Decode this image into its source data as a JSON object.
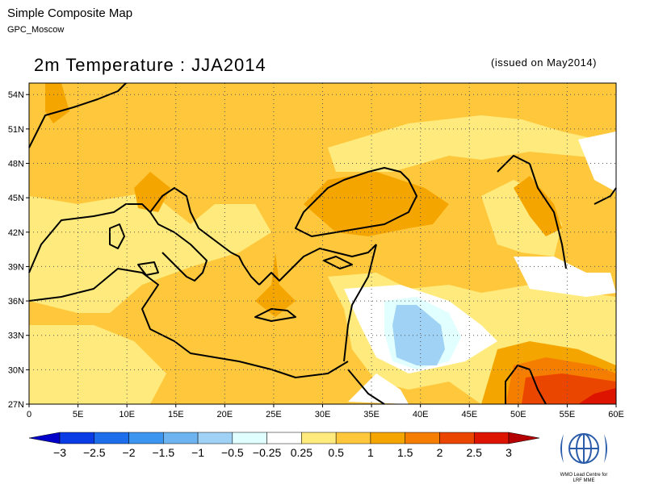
{
  "header": {
    "title": "Simple Composite Map",
    "source": "GPC_Moscow"
  },
  "map": {
    "title": "2m Temperature : JJA2014",
    "issued": "(issued on May2014)",
    "lon_range": [
      0,
      60
    ],
    "lat_range": [
      27,
      55
    ],
    "lat_ticks": [
      {
        "value": 27,
        "label": "27N"
      },
      {
        "value": 30,
        "label": "30N"
      },
      {
        "value": 33,
        "label": "33N"
      },
      {
        "value": 36,
        "label": "36N"
      },
      {
        "value": 39,
        "label": "39N"
      },
      {
        "value": 42,
        "label": "42N"
      },
      {
        "value": 45,
        "label": "45N"
      },
      {
        "value": 48,
        "label": "48N"
      },
      {
        "value": 51,
        "label": "51N"
      },
      {
        "value": 54,
        "label": "54N"
      }
    ],
    "lon_ticks": [
      {
        "value": 0,
        "label": "0"
      },
      {
        "value": 5,
        "label": "5E"
      },
      {
        "value": 10,
        "label": "10E"
      },
      {
        "value": 15,
        "label": "15E"
      },
      {
        "value": 20,
        "label": "20E"
      },
      {
        "value": 25,
        "label": "25E"
      },
      {
        "value": 30,
        "label": "30E"
      },
      {
        "value": 35,
        "label": "35E"
      },
      {
        "value": 40,
        "label": "40E"
      },
      {
        "value": 45,
        "label": "45E"
      },
      {
        "value": 50,
        "label": "50E"
      },
      {
        "value": 55,
        "label": "55E"
      },
      {
        "value": 60,
        "label": "60E"
      }
    ],
    "grid": "dotted"
  },
  "colorbar": {
    "labels": [
      "−3",
      "−2.5",
      "−2",
      "−1.5",
      "−1",
      "−0.5",
      "−0.25",
      "0.25",
      "0.5",
      "1",
      "1.5",
      "2",
      "2.5",
      "3"
    ],
    "colors": [
      "#0000c8",
      "#0a3ce6",
      "#1e6eeb",
      "#3c96f0",
      "#6eb4f0",
      "#a0d2f5",
      "#e1ffff",
      "#ffffff",
      "#ffeb7d",
      "#ffc83c",
      "#f5a500",
      "#f57d00",
      "#eb4600",
      "#dc1400",
      "#b40000"
    ]
  },
  "logo": {
    "line1": "WMO Lead Centre for",
    "line2": "LRF MME"
  }
}
